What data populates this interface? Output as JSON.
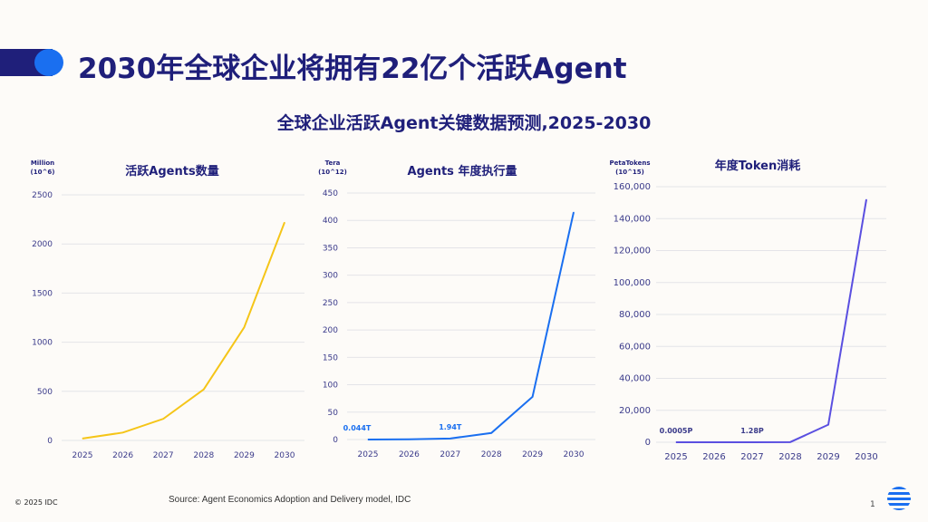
{
  "header": {
    "title": "2030年全球企业将拥有22亿个活跃Agent",
    "subtitle": "全球企业活跃Agent关键数据预测,2025-2030"
  },
  "footer": {
    "copyright": "© 2025 IDC",
    "source": "Source: Agent Economics Adoption and Delivery model, IDC",
    "page": "1"
  },
  "chart_data": [
    {
      "type": "line",
      "title": "活跃Agents数量",
      "unit_line1": "Million",
      "unit_line2": "(10^6)",
      "color": "#f5c518",
      "categories": [
        "2025",
        "2026",
        "2027",
        "2028",
        "2029",
        "2030"
      ],
      "values": [
        20,
        80,
        220,
        520,
        1150,
        2220
      ],
      "ylim": [
        0,
        2500
      ],
      "yticks": [
        "0",
        "500",
        "1000",
        "1500",
        "2000",
        "2500"
      ],
      "grid": true,
      "data_labels": []
    },
    {
      "type": "line",
      "title": "Agents 年度执行量",
      "unit_line1": "Tera",
      "unit_line2": "(10^12)",
      "color": "#1a6ff0",
      "categories": [
        "2025",
        "2026",
        "2027",
        "2028",
        "2029",
        "2030"
      ],
      "values": [
        0.044,
        0.5,
        1.94,
        12,
        78,
        415
      ],
      "ylim": [
        0,
        450
      ],
      "yticks": [
        "0",
        "50",
        "100",
        "150",
        "200",
        "250",
        "300",
        "350",
        "400",
        "450"
      ],
      "grid": true,
      "data_labels": [
        {
          "index": 0,
          "text": "0.044T"
        },
        {
          "index": 2,
          "text": "1.94T"
        }
      ]
    },
    {
      "type": "line",
      "title": "年度Token消耗",
      "unit_line1": "PetaTokens",
      "unit_line2": "(10^15)",
      "color": "#5a4fe0",
      "categories": [
        "2025",
        "2026",
        "2027",
        "2028",
        "2029",
        "2030"
      ],
      "values": [
        0.0005,
        0.1,
        1.28,
        100,
        11000,
        152000
      ],
      "ylim": [
        0,
        160000
      ],
      "yticks": [
        "0",
        "20,000",
        "40,000",
        "60,000",
        "80,000",
        "100,000",
        "120,000",
        "140,000",
        "160,000"
      ],
      "grid": true,
      "data_labels": [
        {
          "index": 0,
          "text": "0.0005P"
        },
        {
          "index": 2,
          "text": "1.28P"
        }
      ]
    }
  ]
}
